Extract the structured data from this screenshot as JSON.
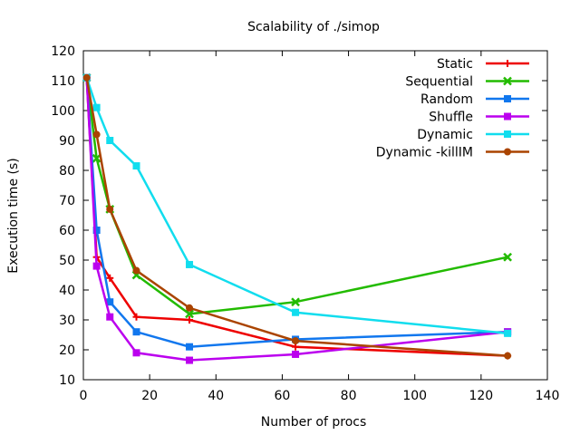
{
  "chart_data": {
    "type": "line",
    "title": "Scalability of ./simop",
    "xlabel": "Number of procs",
    "ylabel": "Execution time (s)",
    "xlim": [
      0,
      140
    ],
    "ylim": [
      10,
      120
    ],
    "xticks": [
      0,
      20,
      40,
      60,
      80,
      100,
      120,
      140
    ],
    "yticks": [
      10,
      20,
      30,
      40,
      50,
      60,
      70,
      80,
      90,
      100,
      110,
      120
    ],
    "grid": false,
    "legend_position": "top-right",
    "series": [
      {
        "name": "Static",
        "color": "#ee0000",
        "marker": "plus",
        "x": [
          1,
          4,
          8,
          16,
          32,
          64,
          128
        ],
        "y": [
          111,
          51,
          44,
          31,
          30,
          21,
          18
        ]
      },
      {
        "name": "Sequential",
        "color": "#22bb00",
        "marker": "cross",
        "x": [
          1,
          4,
          8,
          16,
          32,
          64,
          128
        ],
        "y": [
          111,
          84,
          67,
          45,
          32,
          36,
          51
        ]
      },
      {
        "name": "Random",
        "color": "#1177ee",
        "marker": "square",
        "x": [
          1,
          4,
          8,
          16,
          32,
          64,
          128
        ],
        "y": [
          111,
          60,
          36,
          26,
          21,
          23.5,
          26
        ]
      },
      {
        "name": "Shuffle",
        "color": "#bb00ee",
        "marker": "square",
        "x": [
          1,
          4,
          8,
          16,
          32,
          64,
          128
        ],
        "y": [
          111,
          48,
          31,
          19,
          16.5,
          18.5,
          26
        ]
      },
      {
        "name": "Dynamic",
        "color": "#11ddee",
        "marker": "square",
        "x": [
          1,
          4,
          8,
          16,
          32,
          64,
          128
        ],
        "y": [
          111,
          101,
          90,
          81.5,
          48.5,
          32.5,
          25.5
        ]
      },
      {
        "name": "Dynamic -killIM",
        "color": "#aa4400",
        "marker": "circle",
        "x": [
          1,
          4,
          8,
          16,
          32,
          64,
          128
        ],
        "y": [
          111,
          92,
          67,
          46.5,
          34,
          23,
          18
        ]
      }
    ]
  }
}
